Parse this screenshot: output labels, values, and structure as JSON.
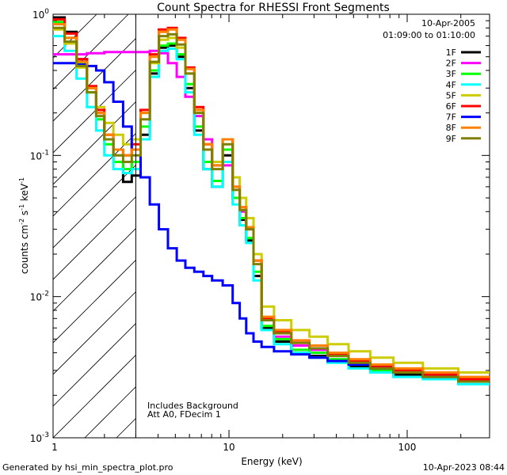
{
  "chart_data": {
    "type": "line",
    "title": "Count Spectra for RHESSI Front Segments",
    "xlabel": "Energy (keV)",
    "ylabel": "counts cm",
    "ylabel_sup1": "-2",
    "ylabel_mid": " s",
    "ylabel_sup2": "-1",
    "ylabel_end": " keV",
    "ylabel_sup3": "-1",
    "xscale": "log",
    "yscale": "log",
    "xlim": [
      1.03,
      290
    ],
    "ylim": [
      0.001,
      1.0
    ],
    "x_ticks": [
      {
        "v": 10,
        "label": "10"
      },
      {
        "v": 100,
        "label": "100"
      }
    ],
    "y_ticks": [
      {
        "v": 1.0,
        "label": "10",
        "exp": "0"
      },
      {
        "v": 0.1,
        "label": "10",
        "exp": "-1"
      },
      {
        "v": 0.01,
        "label": "10",
        "exp": "-2"
      },
      {
        "v": 0.001,
        "label": "10",
        "exp": "-3"
      }
    ],
    "date": "10-Apr-2005",
    "time_range": "01:09:00 to 01:10:00",
    "attenuator_line_keV": 3.0,
    "annotations": [
      "Includes Background",
      "Att A0, FDecim 1"
    ],
    "footer_left": "Generated by hsi_min_spectra_plot.pro",
    "footer_right": "10-Apr-2023 08:44",
    "series": [
      {
        "name": "1F",
        "color": "#000000",
        "values": [
          0.95,
          0.75,
          0.48,
          0.3,
          0.2,
          0.13,
          0.09,
          0.065,
          0.072,
          0.14,
          0.38,
          0.58,
          0.6,
          0.5,
          0.3,
          0.15,
          0.08,
          0.06,
          0.1,
          0.05,
          0.035,
          0.025,
          0.014,
          0.006,
          0.0048,
          0.004,
          0.0038,
          0.0035,
          0.0032,
          0.003,
          0.0028,
          0.0027,
          0.0025
        ]
      },
      {
        "name": "2F",
        "color": "#ff00ff",
        "values": [
          0.52,
          0.52,
          0.52,
          0.53,
          0.53,
          0.54,
          0.54,
          0.54,
          0.54,
          0.54,
          0.55,
          0.53,
          0.45,
          0.36,
          0.26,
          0.19,
          0.13,
          0.09,
          0.085,
          0.05,
          0.04,
          0.03,
          0.018,
          0.0068,
          0.0052,
          0.0045,
          0.0042,
          0.0038,
          0.0034,
          0.0031,
          0.0029,
          0.0028,
          0.0026
        ]
      },
      {
        "name": "3F",
        "color": "#00ff00",
        "values": [
          0.88,
          0.68,
          0.45,
          0.28,
          0.18,
          0.12,
          0.09,
          0.08,
          0.09,
          0.16,
          0.4,
          0.6,
          0.62,
          0.52,
          0.32,
          0.16,
          0.09,
          0.066,
          0.11,
          0.05,
          0.036,
          0.026,
          0.015,
          0.0062,
          0.005,
          0.0042,
          0.004,
          0.0036,
          0.0033,
          0.003,
          0.0029,
          0.0027,
          0.0025
        ]
      },
      {
        "name": "4F",
        "color": "#00ffff",
        "values": [
          0.7,
          0.55,
          0.35,
          0.22,
          0.15,
          0.1,
          0.08,
          0.075,
          0.08,
          0.13,
          0.36,
          0.55,
          0.57,
          0.48,
          0.28,
          0.14,
          0.08,
          0.06,
          0.09,
          0.045,
          0.032,
          0.024,
          0.013,
          0.0058,
          0.0046,
          0.004,
          0.0037,
          0.0034,
          0.0031,
          0.0029,
          0.0027,
          0.0026,
          0.0024
        ]
      },
      {
        "name": "5F",
        "color": "#cccc00",
        "values": [
          0.78,
          0.62,
          0.42,
          0.3,
          0.22,
          0.17,
          0.14,
          0.12,
          0.13,
          0.2,
          0.45,
          0.66,
          0.68,
          0.58,
          0.38,
          0.21,
          0.12,
          0.09,
          0.13,
          0.07,
          0.05,
          0.036,
          0.02,
          0.0085,
          0.0068,
          0.0058,
          0.0052,
          0.0046,
          0.0041,
          0.0037,
          0.0034,
          0.0031,
          0.0029
        ]
      },
      {
        "name": "6F",
        "color": "#ff0000",
        "values": [
          0.92,
          0.73,
          0.48,
          0.31,
          0.21,
          0.14,
          0.11,
          0.1,
          0.12,
          0.21,
          0.52,
          0.78,
          0.8,
          0.68,
          0.42,
          0.22,
          0.12,
          0.085,
          0.13,
          0.06,
          0.043,
          0.031,
          0.018,
          0.007,
          0.0056,
          0.0047,
          0.0043,
          0.0039,
          0.0035,
          0.0032,
          0.003,
          0.0028,
          0.0026
        ]
      },
      {
        "name": "7F",
        "color": "#0000ff",
        "values": [
          0.45,
          0.45,
          0.44,
          0.43,
          0.4,
          0.33,
          0.24,
          0.16,
          0.11,
          0.07,
          0.045,
          0.03,
          0.022,
          0.018,
          0.016,
          0.015,
          0.014,
          0.013,
          0.012,
          0.009,
          0.007,
          0.0055,
          0.0048,
          0.0044,
          0.0041,
          0.0039,
          0.0037,
          0.0035,
          0.0033,
          0.0031,
          0.0029,
          0.0027,
          0.0025
        ]
      },
      {
        "name": "8F",
        "color": "#ff8000",
        "values": [
          0.85,
          0.68,
          0.46,
          0.3,
          0.2,
          0.14,
          0.11,
          0.1,
          0.11,
          0.2,
          0.5,
          0.75,
          0.78,
          0.66,
          0.41,
          0.21,
          0.12,
          0.085,
          0.13,
          0.06,
          0.043,
          0.031,
          0.018,
          0.0072,
          0.0058,
          0.0049,
          0.0045,
          0.004,
          0.0036,
          0.0033,
          0.0031,
          0.0029,
          0.0027
        ]
      },
      {
        "name": "9F",
        "color": "#808000",
        "values": [
          0.8,
          0.64,
          0.43,
          0.28,
          0.19,
          0.13,
          0.1,
          0.09,
          0.1,
          0.18,
          0.46,
          0.7,
          0.72,
          0.61,
          0.38,
          0.2,
          0.11,
          0.08,
          0.12,
          0.057,
          0.041,
          0.03,
          0.017,
          0.0068,
          0.0055,
          0.0047,
          0.0043,
          0.0038,
          0.0034,
          0.0031,
          0.0029,
          0.0027,
          0.0025
        ]
      }
    ],
    "x": [
      1.1,
      1.3,
      1.5,
      1.7,
      1.9,
      2.1,
      2.4,
      2.7,
      3.0,
      3.4,
      3.8,
      4.3,
      4.8,
      5.4,
      6.0,
      6.8,
      7.6,
      8.5,
      10.0,
      11.0,
      12.0,
      13.0,
      14.5,
      16.0,
      20.0,
      25.0,
      32.0,
      40.0,
      55.0,
      70.0,
      100.0,
      150.0,
      250.0
    ]
  }
}
